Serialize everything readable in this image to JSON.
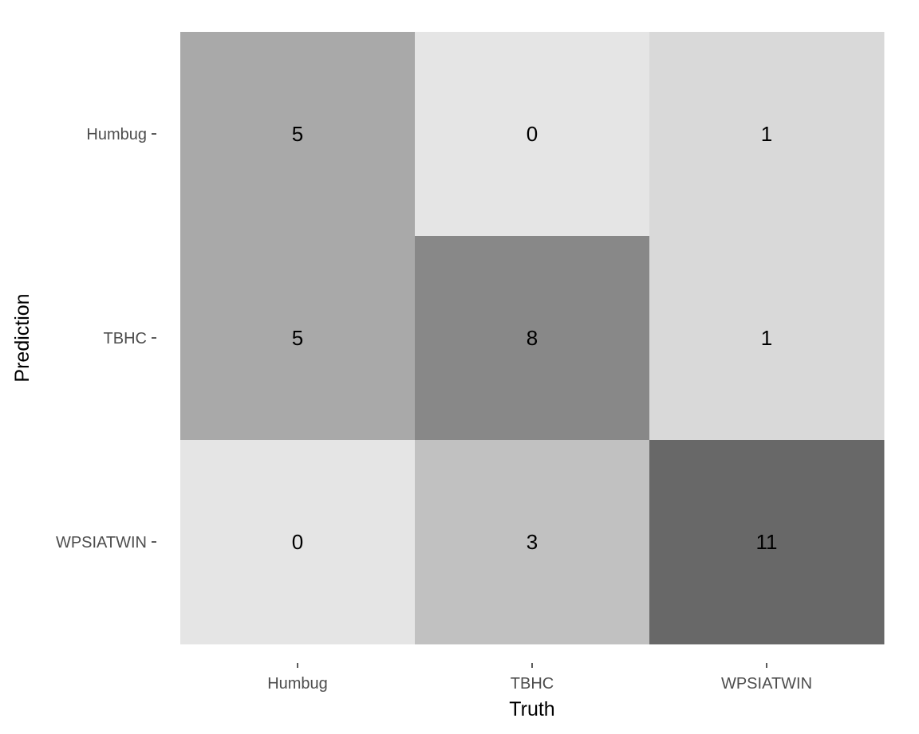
{
  "chart_data": {
    "type": "heatmap",
    "title": "",
    "xlabel": "Truth",
    "ylabel": "Prediction",
    "x_categories": [
      "Humbug",
      "TBHC",
      "WPSIATWIN"
    ],
    "y_categories": [
      "Humbug",
      "TBHC",
      "WPSIATWIN"
    ],
    "values": [
      [
        5,
        0,
        1
      ],
      [
        5,
        8,
        1
      ],
      [
        0,
        3,
        11
      ]
    ],
    "fill_colors": [
      [
        "#a9a9a9",
        "#e5e5e5",
        "#d9d9d9"
      ],
      [
        "#a9a9a9",
        "#888888",
        "#d9d9d9"
      ],
      [
        "#e5e5e5",
        "#c1c1c1",
        "#686868"
      ]
    ],
    "grid": false,
    "legend": "none"
  }
}
